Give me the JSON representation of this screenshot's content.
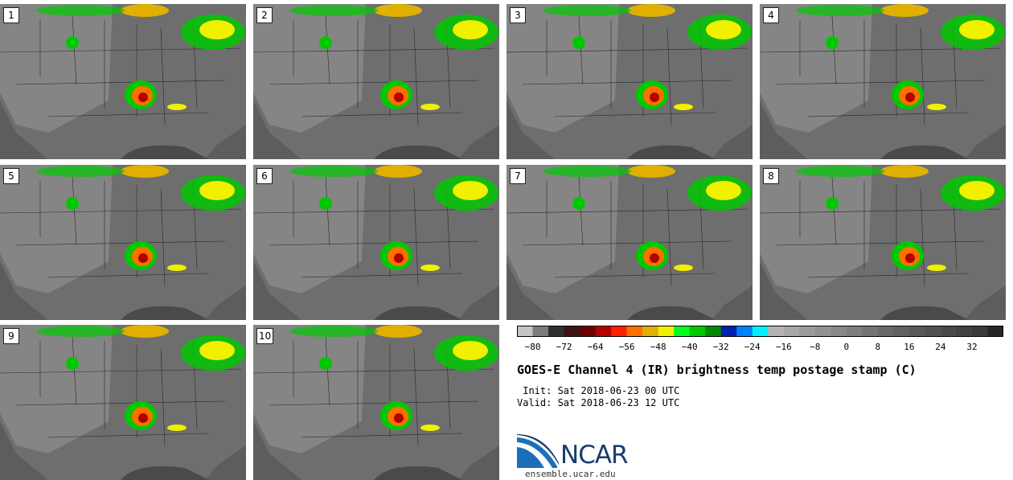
{
  "figure": {
    "title": "GOES-E Channel 4 (IR) brightness temp postage stamp (C)",
    "init_line": " Init: Sat 2018-06-23 00 UTC",
    "valid_line": "Valid: Sat 2018-06-23 12 UTC"
  },
  "panels": [
    {
      "label": "1"
    },
    {
      "label": "2"
    },
    {
      "label": "3"
    },
    {
      "label": "4"
    },
    {
      "label": "5"
    },
    {
      "label": "6"
    },
    {
      "label": "7"
    },
    {
      "label": "8"
    },
    {
      "label": "9"
    },
    {
      "label": "10"
    }
  ],
  "colorbar": {
    "min": -84,
    "max": 40,
    "step": 4,
    "tick_labels": [
      "−80",
      "−72",
      "−64",
      "−56",
      "−48",
      "−40",
      "−32",
      "−24",
      "−16",
      "−8",
      "0",
      "8",
      "16",
      "24",
      "32"
    ],
    "tick_values": [
      -80,
      -72,
      -64,
      -56,
      -48,
      -40,
      -32,
      -24,
      -16,
      -8,
      0,
      8,
      16,
      24,
      32
    ],
    "colors": [
      "#c4c4c4",
      "#7c7c7c",
      "#303030",
      "#3c1414",
      "#6e0000",
      "#b40000",
      "#ff2000",
      "#ff7000",
      "#e0b000",
      "#f0f000",
      "#00ff20",
      "#00c800",
      "#008c00",
      "#0020b0",
      "#0080ff",
      "#00f0ff",
      "#b4b4b4",
      "#a8a8a8",
      "#9c9c9c",
      "#929292",
      "#888888",
      "#7e7e7e",
      "#747474",
      "#6a6a6a",
      "#626262",
      "#5a5a5a",
      "#525252",
      "#4a4a4a",
      "#424242",
      "#3a3a3a",
      "#262626"
    ]
  },
  "logo": {
    "name": "NCAR",
    "site": "ensemble.ucar.edu"
  }
}
